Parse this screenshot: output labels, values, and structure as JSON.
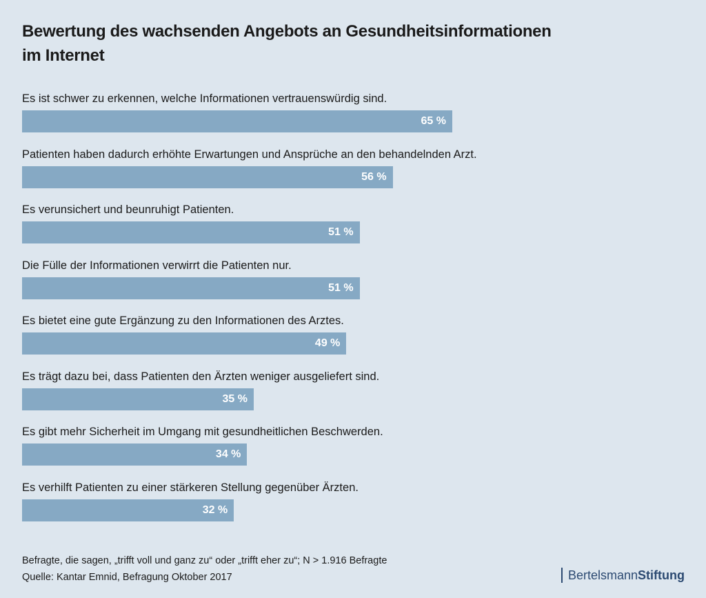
{
  "title": {
    "line1": "Bewertung des wachsenden Angebots an Gesundheitsinformationen",
    "line2": "im Internet"
  },
  "chart_data": {
    "type": "bar",
    "orientation": "horizontal",
    "title": "Bewertung des wachsenden Angebots an Gesundheitsinformationen im Internet",
    "categories": [
      "Es ist schwer zu erkennen, welche Informationen vertrauenswürdig sind.",
      "Patienten haben dadurch erhöhte Erwartungen und Ansprüche an den behandelnden Arzt.",
      "Es verunsichert und beunruhigt Patienten.",
      "Die Fülle der Informationen verwirrt die Patienten nur.",
      "Es bietet eine gute Ergänzung zu den Informationen des Arztes.",
      "Es trägt dazu bei, dass Patienten den Ärzten weniger ausgeliefert sind.",
      "Es gibt mehr Sicherheit im Umgang mit gesundheitlichen Beschwerden.",
      "Es verhilft Patienten zu einer stärkeren Stellung gegenüber Ärzten."
    ],
    "values": [
      65,
      56,
      51,
      51,
      49,
      35,
      34,
      32
    ],
    "value_labels": [
      "65 %",
      "56 %",
      "51 %",
      "51 %",
      "49 %",
      "35 %",
      "34 %",
      "32 %"
    ],
    "unit": "%",
    "xlim": [
      0,
      100
    ],
    "bar_color": "#86a9c4",
    "label_color": "#ffffff",
    "grid": false
  },
  "footer": {
    "note": "Befragte, die sagen, „trifft voll und ganz zu“ oder „trifft eher zu“; N > 1.916 Befragte",
    "source": "Quelle: Kantar Emnid, Befragung Oktober 2017"
  },
  "brand": {
    "part1": "Bertelsmann",
    "part2": "Stiftung",
    "color": "#2c4a72"
  },
  "colors": {
    "background": "#dde6ee",
    "text": "#1a1a1a"
  }
}
